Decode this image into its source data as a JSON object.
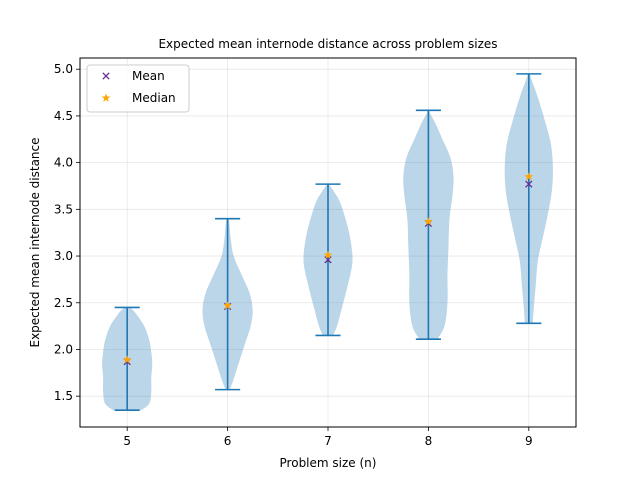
{
  "chart_data": {
    "type": "violin",
    "title": "Expected mean internode distance across problem sizes",
    "xlabel": "Problem size (n)",
    "ylabel": "Expected mean internode distance",
    "xlim": [
      4.53,
      9.47
    ],
    "ylim": [
      1.17,
      5.12
    ],
    "xticks": [
      "5",
      "6",
      "7",
      "8",
      "9"
    ],
    "yticks": [
      "1.5",
      "2.0",
      "2.5",
      "3.0",
      "3.5",
      "4.0",
      "4.5",
      "5.0"
    ],
    "grid": true,
    "legend": {
      "location": "upper left",
      "entries": [
        {
          "label": "Mean",
          "marker": "x",
          "color": "#6a2c91"
        },
        {
          "label": "Median",
          "marker": "*",
          "color": "#ffa500"
        }
      ]
    },
    "colors": {
      "violin_fill": "#1f77b4",
      "violin_alpha": 0.3,
      "whisker": "#1f77b4",
      "mean": "#6a2c91",
      "median": "#ffa500"
    },
    "series": [
      {
        "n": 5,
        "min": 1.35,
        "max": 2.45,
        "mean": 1.87,
        "median": 1.89,
        "profile": [
          [
            1.35,
            0.14
          ],
          [
            1.42,
            0.22
          ],
          [
            1.55,
            0.24
          ],
          [
            1.7,
            0.24
          ],
          [
            1.85,
            0.25
          ],
          [
            1.97,
            0.24
          ],
          [
            2.1,
            0.22
          ],
          [
            2.25,
            0.17
          ],
          [
            2.38,
            0.09
          ],
          [
            2.45,
            0.03
          ]
        ]
      },
      {
        "n": 6,
        "min": 1.57,
        "max": 3.4,
        "mean": 2.46,
        "median": 2.47,
        "profile": [
          [
            1.57,
            0.02
          ],
          [
            1.65,
            0.05
          ],
          [
            1.85,
            0.11
          ],
          [
            2.05,
            0.17
          ],
          [
            2.25,
            0.23
          ],
          [
            2.42,
            0.25
          ],
          [
            2.6,
            0.22
          ],
          [
            2.8,
            0.14
          ],
          [
            3.0,
            0.06
          ],
          [
            3.2,
            0.03
          ],
          [
            3.33,
            0.02
          ],
          [
            3.4,
            0.01
          ]
        ]
      },
      {
        "n": 7,
        "min": 2.15,
        "max": 3.77,
        "mean": 2.96,
        "median": 3.01,
        "profile": [
          [
            2.15,
            0.05
          ],
          [
            2.25,
            0.09
          ],
          [
            2.45,
            0.14
          ],
          [
            2.7,
            0.2
          ],
          [
            2.9,
            0.24
          ],
          [
            3.05,
            0.24
          ],
          [
            3.25,
            0.21
          ],
          [
            3.45,
            0.16
          ],
          [
            3.6,
            0.11
          ],
          [
            3.72,
            0.04
          ],
          [
            3.77,
            0.01
          ]
        ]
      },
      {
        "n": 8,
        "min": 2.11,
        "max": 4.56,
        "mean": 3.35,
        "median": 3.37,
        "profile": [
          [
            2.11,
            0.09
          ],
          [
            2.25,
            0.16
          ],
          [
            2.5,
            0.19
          ],
          [
            2.8,
            0.19
          ],
          [
            3.1,
            0.2
          ],
          [
            3.4,
            0.21
          ],
          [
            3.65,
            0.24
          ],
          [
            3.85,
            0.25
          ],
          [
            4.05,
            0.22
          ],
          [
            4.25,
            0.14
          ],
          [
            4.42,
            0.07
          ],
          [
            4.52,
            0.02
          ],
          [
            4.56,
            0.01
          ]
        ]
      },
      {
        "n": 9,
        "min": 2.28,
        "max": 4.95,
        "mean": 3.77,
        "median": 3.85,
        "profile": [
          [
            2.28,
            0.04
          ],
          [
            2.45,
            0.05
          ],
          [
            2.7,
            0.07
          ],
          [
            2.95,
            0.09
          ],
          [
            3.2,
            0.14
          ],
          [
            3.45,
            0.19
          ],
          [
            3.7,
            0.23
          ],
          [
            3.95,
            0.24
          ],
          [
            4.2,
            0.22
          ],
          [
            4.45,
            0.16
          ],
          [
            4.7,
            0.09
          ],
          [
            4.88,
            0.03
          ],
          [
            4.95,
            0.01
          ]
        ]
      }
    ]
  }
}
